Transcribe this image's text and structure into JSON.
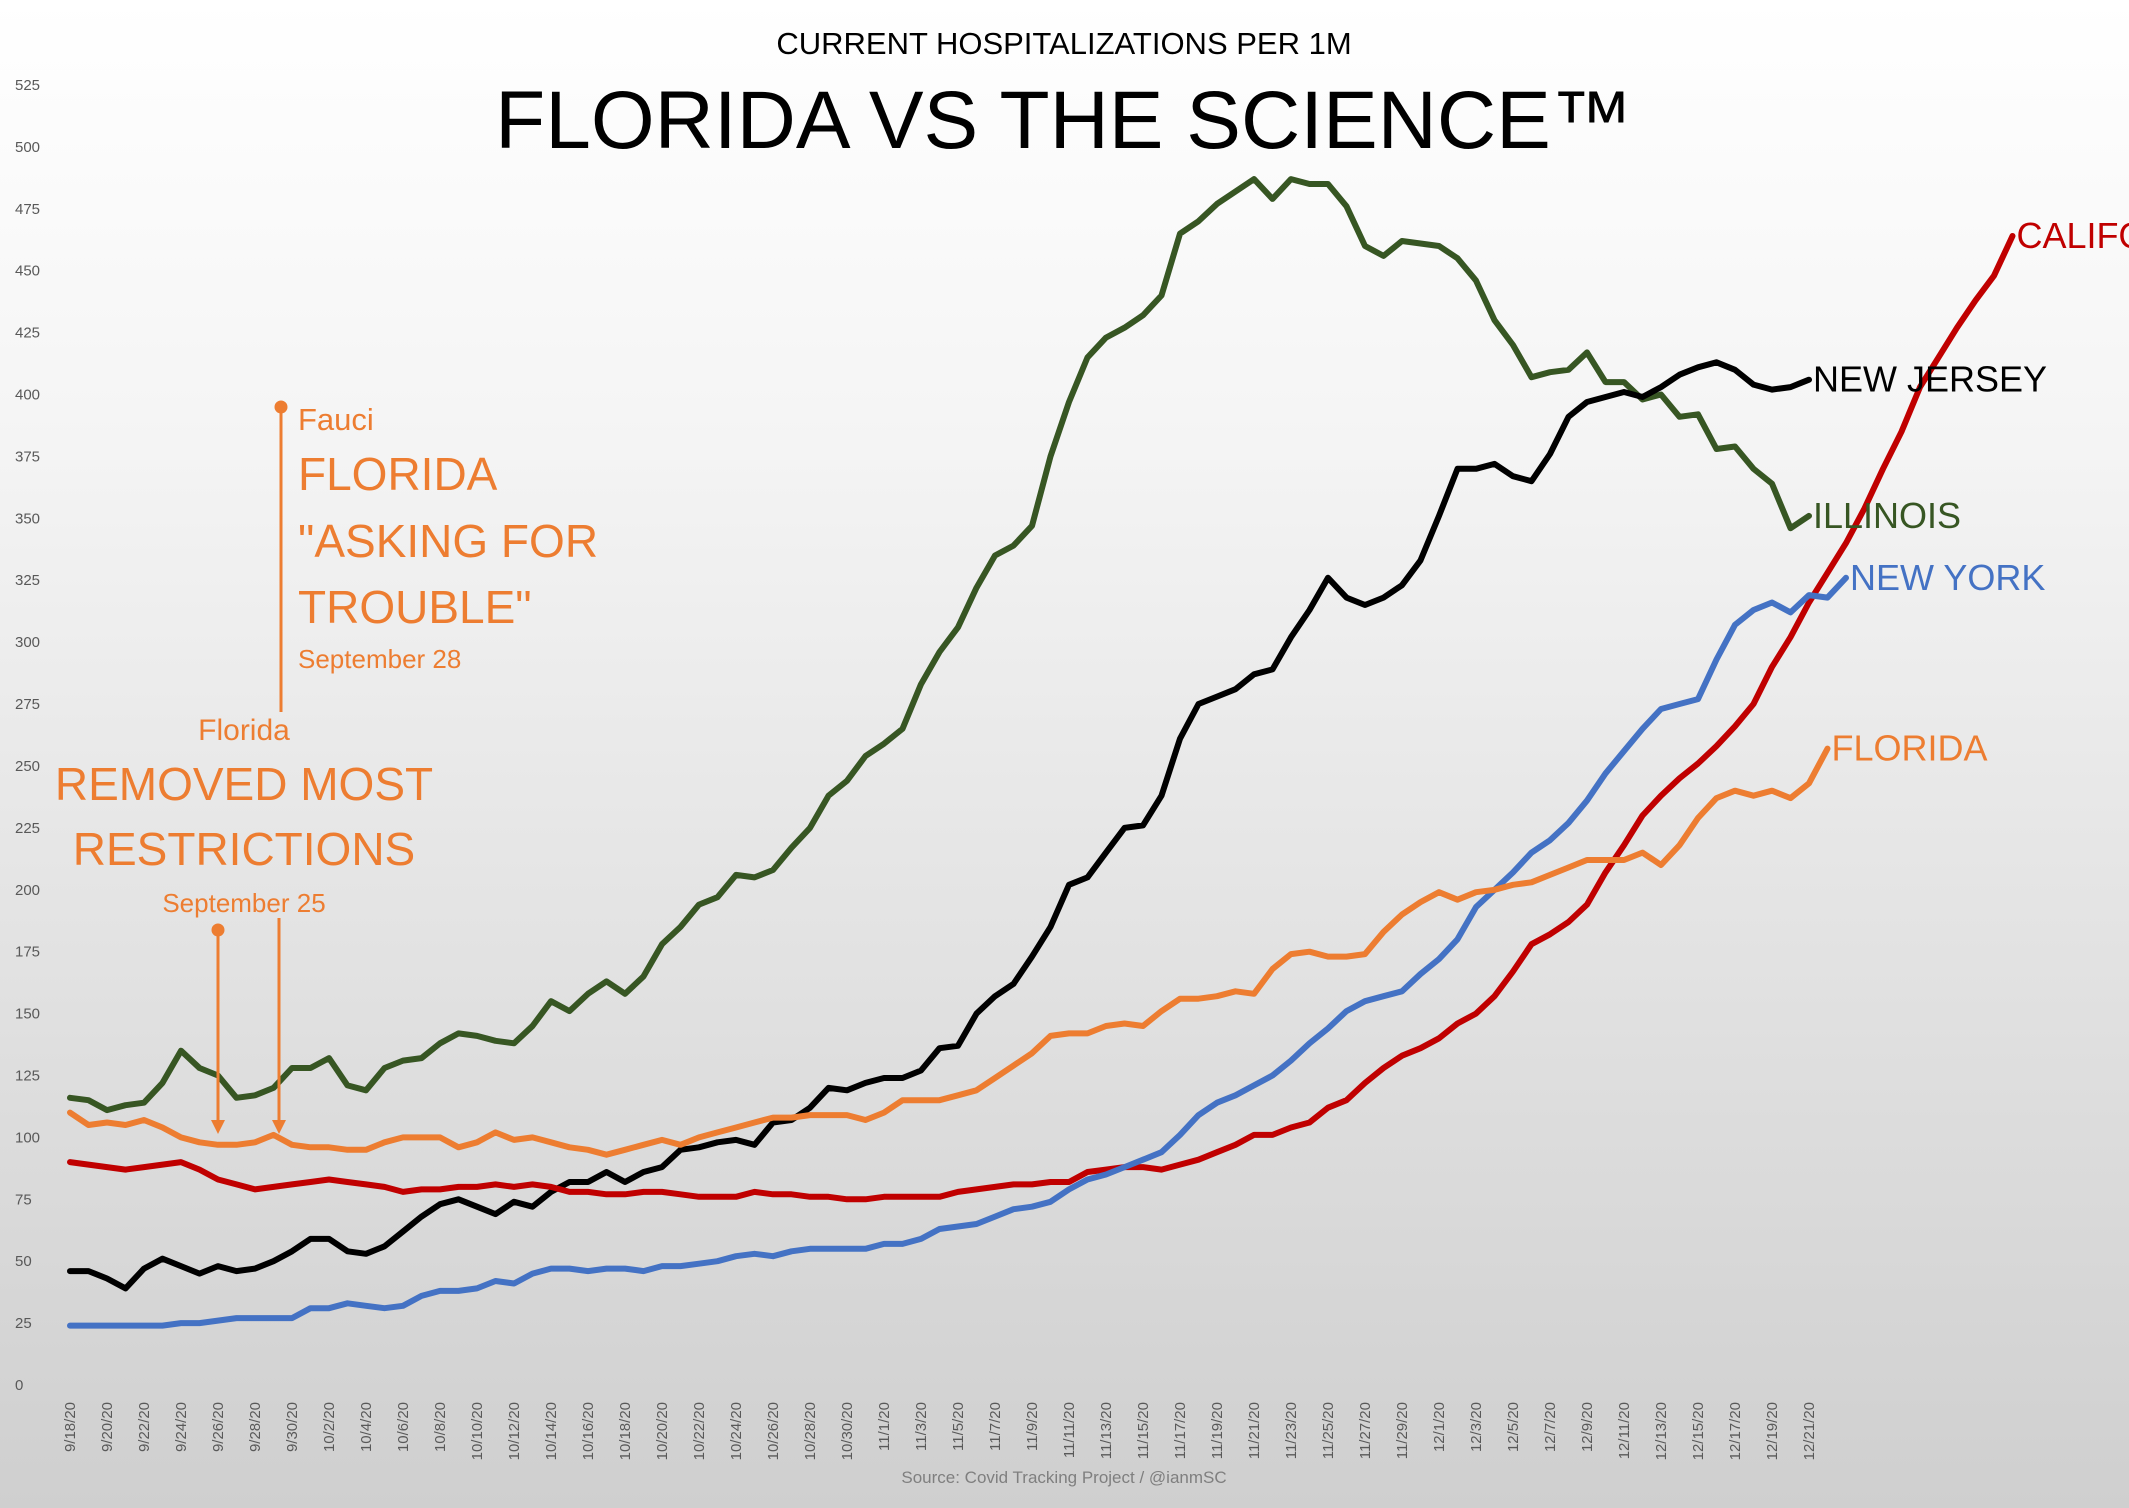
{
  "chart_data": {
    "type": "line",
    "subtitle": "CURRENT HOSPITALIZATIONS PER 1M",
    "title": "FLORIDA VS THE SCIENCE™",
    "source": "Source: Covid Tracking Project  /  @ianmSC",
    "ylim": [
      0,
      525
    ],
    "yticks": [
      0,
      25,
      50,
      75,
      100,
      125,
      150,
      175,
      200,
      225,
      250,
      275,
      300,
      325,
      350,
      375,
      400,
      425,
      450,
      475,
      500,
      525
    ],
    "start_date": "9/18/20",
    "x_tick_labels": [
      "9/18/20",
      "9/20/20",
      "9/22/20",
      "9/24/20",
      "9/26/20",
      "9/28/20",
      "9/30/20",
      "10/2/20",
      "10/4/20",
      "10/6/20",
      "10/8/20",
      "10/10/20",
      "10/12/20",
      "10/14/20",
      "10/16/20",
      "10/18/20",
      "10/20/20",
      "10/22/20",
      "10/24/20",
      "10/26/20",
      "10/28/20",
      "10/30/20",
      "11/1/20",
      "11/3/20",
      "11/5/20",
      "11/7/20",
      "11/9/20",
      "11/11/20",
      "11/13/20",
      "11/15/20",
      "11/17/20",
      "11/19/20",
      "11/21/20",
      "11/23/20",
      "11/25/20",
      "11/27/20",
      "11/29/20",
      "12/1/20",
      "12/3/20",
      "12/5/20",
      "12/7/20",
      "12/9/20",
      "12/11/20",
      "12/13/20",
      "12/15/20",
      "12/17/20",
      "12/19/20",
      "12/21/20"
    ],
    "grid": false,
    "series": [
      {
        "name": "ILLINOIS",
        "color": "#375623",
        "values": [
          116,
          115,
          111,
          113,
          114,
          122,
          135,
          128,
          125,
          116,
          117,
          120,
          128,
          128,
          132,
          121,
          119,
          128,
          131,
          132,
          138,
          142,
          141,
          139,
          138,
          145,
          155,
          151,
          158,
          163,
          158,
          165,
          178,
          185,
          194,
          197,
          206,
          205,
          208,
          217,
          225,
          238,
          244,
          254,
          259,
          265,
          283,
          296,
          306,
          322,
          335,
          339,
          347,
          375,
          397,
          415,
          423,
          427,
          432,
          440,
          465,
          470,
          477,
          482,
          487,
          479,
          487,
          485,
          485,
          476,
          460,
          456,
          462,
          461,
          460,
          455,
          446,
          430,
          420,
          407,
          409,
          410,
          417,
          405,
          405,
          398,
          400,
          391,
          392,
          378,
          379,
          370,
          364,
          346,
          351
        ]
      },
      {
        "name": "NEW JERSEY",
        "color": "#000000",
        "values": [
          46,
          46,
          43,
          39,
          47,
          51,
          48,
          45,
          48,
          46,
          47,
          50,
          54,
          59,
          59,
          54,
          53,
          56,
          62,
          68,
          73,
          75,
          72,
          69,
          74,
          72,
          78,
          82,
          82,
          86,
          82,
          86,
          88,
          95,
          96,
          98,
          99,
          97,
          106,
          107,
          112,
          120,
          119,
          122,
          124,
          124,
          127,
          136,
          137,
          150,
          157,
          162,
          173,
          185,
          202,
          205,
          215,
          225,
          226,
          238,
          261,
          275,
          278,
          281,
          287,
          289,
          302,
          313,
          326,
          318,
          315,
          318,
          323,
          333,
          351,
          370,
          370,
          372,
          367,
          365,
          376,
          391,
          397,
          399,
          401,
          399,
          403,
          408,
          411,
          413,
          410,
          404,
          402,
          403,
          406
        ]
      },
      {
        "name": "CALIFORNIA",
        "color": "#C00000",
        "values": [
          90,
          89,
          88,
          87,
          88,
          89,
          90,
          87,
          83,
          81,
          79,
          80,
          81,
          82,
          83,
          82,
          81,
          80,
          78,
          79,
          79,
          80,
          80,
          81,
          80,
          81,
          80,
          78,
          78,
          77,
          77,
          78,
          78,
          77,
          76,
          76,
          76,
          78,
          77,
          77,
          76,
          76,
          75,
          75,
          76,
          76,
          76,
          76,
          78,
          79,
          80,
          81,
          81,
          82,
          82,
          86,
          87,
          88,
          88,
          87,
          89,
          91,
          94,
          97,
          101,
          101,
          104,
          106,
          112,
          115,
          122,
          128,
          133,
          136,
          140,
          146,
          150,
          157,
          167,
          178,
          182,
          187,
          194,
          207,
          218,
          230,
          238,
          245,
          251,
          258,
          266,
          275,
          290,
          302,
          316,
          328,
          340,
          354,
          370,
          385,
          403,
          415,
          427,
          438,
          448,
          464
        ]
      },
      {
        "name": "NEW YORK",
        "color": "#4472C4",
        "values": [
          24,
          24,
          24,
          24,
          24,
          24,
          25,
          25,
          26,
          27,
          27,
          27,
          27,
          31,
          31,
          33,
          32,
          31,
          32,
          36,
          38,
          38,
          39,
          42,
          41,
          45,
          47,
          47,
          46,
          47,
          47,
          46,
          48,
          48,
          49,
          50,
          52,
          53,
          52,
          54,
          55,
          55,
          55,
          55,
          57,
          57,
          59,
          63,
          64,
          65,
          68,
          71,
          72,
          74,
          79,
          83,
          85,
          88,
          91,
          94,
          101,
          109,
          114,
          117,
          121,
          125,
          131,
          138,
          144,
          151,
          155,
          157,
          159,
          166,
          172,
          180,
          193,
          200,
          207,
          215,
          220,
          227,
          236,
          247,
          256,
          265,
          273,
          275,
          277,
          293,
          307,
          313,
          316,
          312,
          319,
          318,
          326
        ]
      },
      {
        "name": "FLORIDA",
        "color": "#ED7D31",
        "values": [
          110,
          105,
          106,
          105,
          107,
          104,
          100,
          98,
          97,
          97,
          98,
          101,
          97,
          96,
          96,
          95,
          95,
          98,
          100,
          100,
          100,
          96,
          98,
          102,
          99,
          100,
          98,
          96,
          95,
          93,
          95,
          97,
          99,
          97,
          100,
          102,
          104,
          106,
          108,
          108,
          109,
          109,
          109,
          107,
          110,
          115,
          115,
          115,
          117,
          119,
          124,
          129,
          134,
          141,
          142,
          142,
          145,
          146,
          145,
          151,
          156,
          156,
          157,
          159,
          158,
          168,
          174,
          175,
          173,
          173,
          174,
          183,
          190,
          195,
          199,
          196,
          199,
          200,
          202,
          203,
          206,
          209,
          212,
          212,
          212,
          215,
          210,
          218,
          229,
          237,
          240,
          238,
          240,
          237,
          243,
          257
        ]
      }
    ],
    "annotations": [
      {
        "line1": "Florida",
        "line2": "REMOVED MOST",
        "line3": "RESTRICTIONS",
        "date": "September 25"
      },
      {
        "line1": "Fauci",
        "line2": "FLORIDA",
        "line3": "\"ASKING FOR",
        "line4": "TROUBLE\"",
        "date": "September 28"
      }
    ]
  }
}
